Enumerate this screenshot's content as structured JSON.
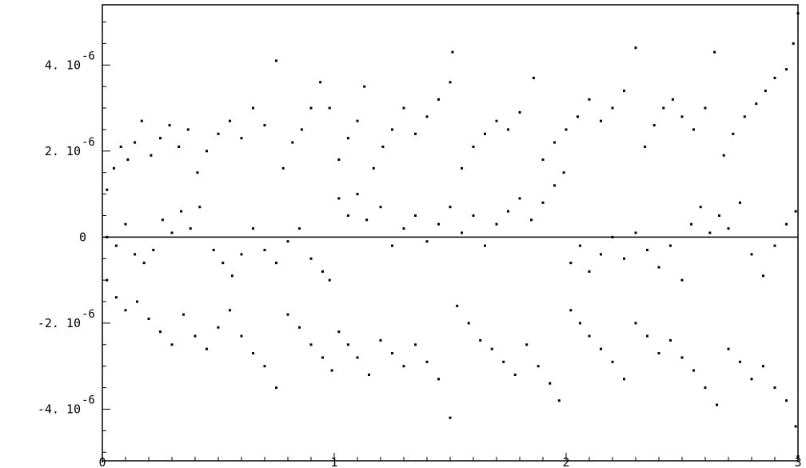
{
  "chart_data": {
    "type": "scatter",
    "title": "",
    "xlabel": "",
    "ylabel": "",
    "xlim": [
      0,
      3
    ],
    "ylim": [
      -5.2e-06,
      5.4e-06
    ],
    "grid": false,
    "legend": "none",
    "zero_line": true,
    "point_color": "#000000",
    "x_ticks": [
      {
        "value": 0,
        "label": "0"
      },
      {
        "value": 1,
        "label": "1"
      },
      {
        "value": 2,
        "label": "2"
      },
      {
        "value": 3,
        "label": "3"
      }
    ],
    "y_ticks": [
      {
        "value": 4e-06,
        "mantissa": "4. 10",
        "exponent": "-6"
      },
      {
        "value": 2e-06,
        "mantissa": "2. 10",
        "exponent": "-6"
      },
      {
        "value": 0,
        "mantissa": "0",
        "exponent": ""
      },
      {
        "value": -2e-06,
        "mantissa": "-2. 10",
        "exponent": "-6"
      },
      {
        "value": -4e-06,
        "mantissa": "-4. 10",
        "exponent": "-6"
      }
    ],
    "series": [
      {
        "values": [
          [
            0.02,
            1.1e-06
          ],
          [
            0.05,
            1.6e-06
          ],
          [
            0.08,
            2.1e-06
          ],
          [
            0.11,
            1.8e-06
          ],
          [
            0.14,
            2.2e-06
          ],
          [
            0.17,
            2.7e-06
          ],
          [
            0.21,
            1.9e-06
          ],
          [
            0.25,
            2.3e-06
          ],
          [
            0.29,
            2.6e-06
          ],
          [
            0.33,
            2.1e-06
          ],
          [
            0.37,
            2.5e-06
          ],
          [
            0.41,
            1.5e-06
          ],
          [
            0.45,
            2e-06
          ],
          [
            0.5,
            2.4e-06
          ],
          [
            0.55,
            2.7e-06
          ],
          [
            0.6,
            2.3e-06
          ],
          [
            0.65,
            3e-06
          ],
          [
            0.7,
            2.6e-06
          ],
          [
            0.75,
            4.1e-06
          ],
          [
            0.78,
            1.6e-06
          ],
          [
            0.82,
            2.2e-06
          ],
          [
            0.86,
            2.5e-06
          ],
          [
            0.9,
            3e-06
          ],
          [
            0.94,
            3.6e-06
          ],
          [
            0.98,
            3e-06
          ],
          [
            1.02,
            1.8e-06
          ],
          [
            1.06,
            2.3e-06
          ],
          [
            1.1,
            2.7e-06
          ],
          [
            1.13,
            3.5e-06
          ],
          [
            1.17,
            1.6e-06
          ],
          [
            1.21,
            2.1e-06
          ],
          [
            1.25,
            2.5e-06
          ],
          [
            1.3,
            3e-06
          ],
          [
            1.35,
            2.4e-06
          ],
          [
            1.4,
            2.8e-06
          ],
          [
            1.45,
            3.2e-06
          ],
          [
            1.5,
            3.6e-06
          ],
          [
            1.51,
            4.3e-06
          ],
          [
            1.55,
            1.6e-06
          ],
          [
            1.6,
            2.1e-06
          ],
          [
            1.65,
            2.4e-06
          ],
          [
            1.7,
            2.7e-06
          ],
          [
            1.75,
            2.5e-06
          ],
          [
            1.8,
            2.9e-06
          ],
          [
            1.86,
            3.7e-06
          ],
          [
            1.9,
            1.8e-06
          ],
          [
            1.95,
            2.2e-06
          ],
          [
            2.0,
            2.5e-06
          ],
          [
            2.05,
            2.8e-06
          ],
          [
            2.1,
            3.2e-06
          ],
          [
            2.15,
            2.7e-06
          ],
          [
            2.2,
            3e-06
          ],
          [
            2.25,
            3.4e-06
          ],
          [
            2.3,
            4.4e-06
          ],
          [
            2.34,
            2.1e-06
          ],
          [
            2.38,
            2.6e-06
          ],
          [
            2.42,
            3e-06
          ],
          [
            2.46,
            3.2e-06
          ],
          [
            2.5,
            2.8e-06
          ],
          [
            2.55,
            2.5e-06
          ],
          [
            2.6,
            3e-06
          ],
          [
            2.64,
            4.3e-06
          ],
          [
            2.68,
            1.9e-06
          ],
          [
            2.72,
            2.4e-06
          ],
          [
            2.77,
            2.8e-06
          ],
          [
            2.82,
            3.1e-06
          ],
          [
            2.86,
            3.4e-06
          ],
          [
            2.9,
            3.7e-06
          ],
          [
            2.95,
            3.9e-06
          ],
          [
            2.98,
            4.5e-06
          ],
          [
            3.0,
            5.2e-06
          ],
          [
            0.02,
            0.0
          ],
          [
            0.06,
            -2e-07
          ],
          [
            0.1,
            3e-07
          ],
          [
            0.14,
            -4e-07
          ],
          [
            0.18,
            -6e-07
          ],
          [
            0.22,
            -3e-07
          ],
          [
            0.26,
            4e-07
          ],
          [
            0.3,
            1e-07
          ],
          [
            0.34,
            6e-07
          ],
          [
            0.38,
            2e-07
          ],
          [
            0.42,
            7e-07
          ],
          [
            0.48,
            -3e-07
          ],
          [
            0.52,
            -6e-07
          ],
          [
            0.56,
            -9e-07
          ],
          [
            0.6,
            -4e-07
          ],
          [
            0.65,
            2e-07
          ],
          [
            0.7,
            -3e-07
          ],
          [
            0.75,
            -6e-07
          ],
          [
            0.8,
            -1e-07
          ],
          [
            0.85,
            2e-07
          ],
          [
            0.9,
            -5e-07
          ],
          [
            0.95,
            -8e-07
          ],
          [
            0.98,
            -1e-06
          ],
          [
            1.02,
            9e-07
          ],
          [
            1.06,
            5e-07
          ],
          [
            1.1,
            1e-06
          ],
          [
            1.14,
            4e-07
          ],
          [
            1.2,
            7e-07
          ],
          [
            1.25,
            -2e-07
          ],
          [
            1.3,
            2e-07
          ],
          [
            1.35,
            5e-07
          ],
          [
            1.4,
            -1e-07
          ],
          [
            1.45,
            3e-07
          ],
          [
            1.5,
            7e-07
          ],
          [
            1.55,
            1e-07
          ],
          [
            1.6,
            5e-07
          ],
          [
            1.65,
            -2e-07
          ],
          [
            1.7,
            3e-07
          ],
          [
            1.75,
            6e-07
          ],
          [
            1.8,
            9e-07
          ],
          [
            1.85,
            4e-07
          ],
          [
            1.9,
            8e-07
          ],
          [
            1.95,
            1.2e-06
          ],
          [
            1.99,
            1.5e-06
          ],
          [
            2.02,
            -6e-07
          ],
          [
            2.06,
            -2e-07
          ],
          [
            2.1,
            -8e-07
          ],
          [
            2.15,
            -4e-07
          ],
          [
            2.2,
            0.0
          ],
          [
            2.25,
            -5e-07
          ],
          [
            2.3,
            1e-07
          ],
          [
            2.35,
            -3e-07
          ],
          [
            2.4,
            -7e-07
          ],
          [
            2.45,
            -2e-07
          ],
          [
            2.5,
            -1e-06
          ],
          [
            2.54,
            3e-07
          ],
          [
            2.58,
            7e-07
          ],
          [
            2.62,
            1e-07
          ],
          [
            2.66,
            5e-07
          ],
          [
            2.7,
            2e-07
          ],
          [
            2.75,
            8e-07
          ],
          [
            2.8,
            -4e-07
          ],
          [
            2.85,
            -9e-07
          ],
          [
            2.9,
            -2e-07
          ],
          [
            2.95,
            3e-07
          ],
          [
            2.99,
            6e-07
          ],
          [
            0.02,
            -1e-06
          ],
          [
            0.06,
            -1.4e-06
          ],
          [
            0.1,
            -1.7e-06
          ],
          [
            0.15,
            -1.5e-06
          ],
          [
            0.2,
            -1.9e-06
          ],
          [
            0.25,
            -2.2e-06
          ],
          [
            0.3,
            -2.5e-06
          ],
          [
            0.35,
            -1.8e-06
          ],
          [
            0.4,
            -2.3e-06
          ],
          [
            0.45,
            -2.6e-06
          ],
          [
            0.5,
            -2.1e-06
          ],
          [
            0.55,
            -1.7e-06
          ],
          [
            0.6,
            -2.3e-06
          ],
          [
            0.65,
            -2.7e-06
          ],
          [
            0.7,
            -3e-06
          ],
          [
            0.75,
            -3.5e-06
          ],
          [
            0.8,
            -1.8e-06
          ],
          [
            0.85,
            -2.1e-06
          ],
          [
            0.9,
            -2.5e-06
          ],
          [
            0.95,
            -2.8e-06
          ],
          [
            0.99,
            -3.1e-06
          ],
          [
            1.02,
            -2.2e-06
          ],
          [
            1.06,
            -2.5e-06
          ],
          [
            1.1,
            -2.8e-06
          ],
          [
            1.15,
            -3.2e-06
          ],
          [
            1.2,
            -2.4e-06
          ],
          [
            1.25,
            -2.7e-06
          ],
          [
            1.3,
            -3e-06
          ],
          [
            1.35,
            -2.5e-06
          ],
          [
            1.4,
            -2.9e-06
          ],
          [
            1.45,
            -3.3e-06
          ],
          [
            1.5,
            -4.2e-06
          ],
          [
            1.53,
            -1.6e-06
          ],
          [
            1.58,
            -2e-06
          ],
          [
            1.63,
            -2.4e-06
          ],
          [
            1.68,
            -2.6e-06
          ],
          [
            1.73,
            -2.9e-06
          ],
          [
            1.78,
            -3.2e-06
          ],
          [
            1.83,
            -2.5e-06
          ],
          [
            1.88,
            -3e-06
          ],
          [
            1.93,
            -3.4e-06
          ],
          [
            1.97,
            -3.8e-06
          ],
          [
            2.02,
            -1.7e-06
          ],
          [
            2.06,
            -2e-06
          ],
          [
            2.1,
            -2.3e-06
          ],
          [
            2.15,
            -2.6e-06
          ],
          [
            2.2,
            -2.9e-06
          ],
          [
            2.25,
            -3.3e-06
          ],
          [
            2.3,
            -2e-06
          ],
          [
            2.35,
            -2.3e-06
          ],
          [
            2.4,
            -2.7e-06
          ],
          [
            2.45,
            -2.4e-06
          ],
          [
            2.5,
            -2.8e-06
          ],
          [
            2.55,
            -3.1e-06
          ],
          [
            2.6,
            -3.5e-06
          ],
          [
            2.65,
            -3.9e-06
          ],
          [
            2.7,
            -2.6e-06
          ],
          [
            2.75,
            -2.9e-06
          ],
          [
            2.8,
            -3.3e-06
          ],
          [
            2.85,
            -3e-06
          ],
          [
            2.9,
            -3.5e-06
          ],
          [
            2.95,
            -3.8e-06
          ],
          [
            2.99,
            -4.4e-06
          ],
          [
            3.0,
            -5.1e-06
          ]
        ]
      }
    ]
  }
}
